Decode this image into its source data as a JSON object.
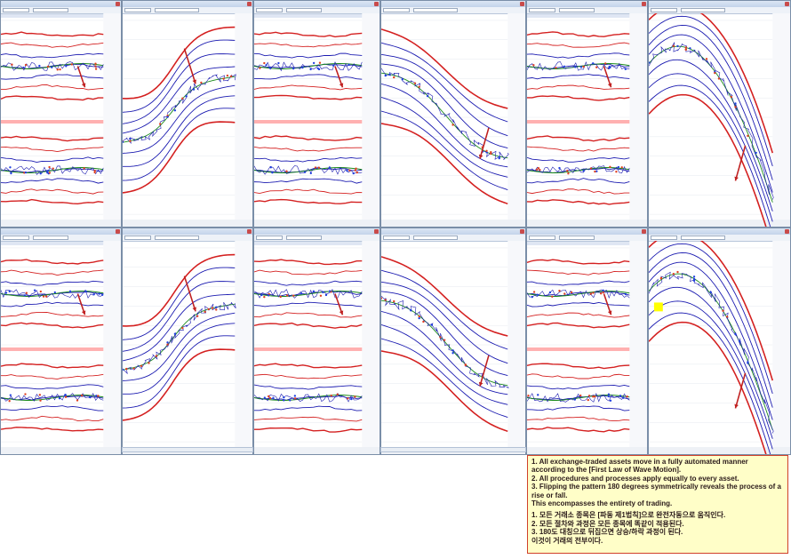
{
  "note": {
    "en_1": "1. All exchange-traded assets move in a fully automated manner according to the [First Law of Wave Motion].",
    "en_2": "2. All procedures and processes apply equally to every asset.",
    "en_3": "3. Flipping the pattern 180 degrees symmetrically reveals the process of a rise or fall.",
    "en_4": "This encompasses the entirety of trading.",
    "ko_1": "1. 모든 거래소 종목은 [파동 제1법칙]으로 완전자동으로 움직인다.",
    "ko_2": "2. 모든 절차와 과정은 모든 종목에 똑같이 적용된다.",
    "ko_3": "3. 180도 대칭으로 뒤집으면 상승/하락 과정이 된다.",
    "ko_4": "이것이 거래의 전부이다."
  },
  "colors": {
    "red_line": "#d42020",
    "blue_line": "#1a1ab0",
    "green_line": "#1a8a1a",
    "arrow": "#c02020",
    "highlight": "#ffff00",
    "note_bg": "#fffec8"
  },
  "icons": {
    "close": "close-icon",
    "scroll_arrow": "scroll-arrow-icon"
  }
}
